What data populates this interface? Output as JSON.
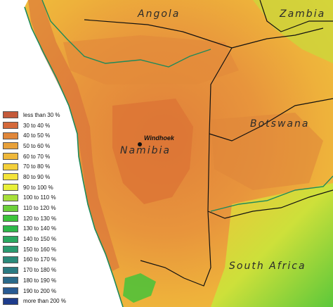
{
  "map": {
    "countries": [
      {
        "id": "angola",
        "label": "Angola"
      },
      {
        "id": "zambia",
        "label": "Zambia"
      },
      {
        "id": "botswana",
        "label": "Botswana"
      },
      {
        "id": "namibia",
        "label": "Namibia"
      },
      {
        "id": "south-africa",
        "label": "South Africa"
      }
    ],
    "city": {
      "label": "Windhoek"
    }
  },
  "legend": {
    "items": [
      {
        "label": "less than 30 %",
        "color": "#c45a3a"
      },
      {
        "label": "30 to 40 %",
        "color": "#d4693a"
      },
      {
        "label": "40 to 50 %",
        "color": "#e0873a"
      },
      {
        "label": "50 to 60 %",
        "color": "#e8a13a"
      },
      {
        "label": "60 to 70 %",
        "color": "#efb83a"
      },
      {
        "label": "70 to 80 %",
        "color": "#f4d03a"
      },
      {
        "label": "80 to 90 %",
        "color": "#f4e43a"
      },
      {
        "label": "90 to 100 %",
        "color": "#e8f03a"
      },
      {
        "label": "100 to 110 %",
        "color": "#a8e03a"
      },
      {
        "label": "110 to 120 %",
        "color": "#6cd03a"
      },
      {
        "label": "120 to 130 %",
        "color": "#3cc43a"
      },
      {
        "label": "130 to 140 %",
        "color": "#2eb84a"
      },
      {
        "label": "140 to 150 %",
        "color": "#2aa860"
      },
      {
        "label": "150 to 160 %",
        "color": "#2a9a70"
      },
      {
        "label": "160 to 170 %",
        "color": "#2a8a7a"
      },
      {
        "label": "170 to 180 %",
        "color": "#2a7a82"
      },
      {
        "label": "180 to 190 %",
        "color": "#2a6a8a"
      },
      {
        "label": "190 to 200 %",
        "color": "#285a92"
      },
      {
        "label": "more than 200 %",
        "color": "#1e3c8c"
      }
    ]
  }
}
